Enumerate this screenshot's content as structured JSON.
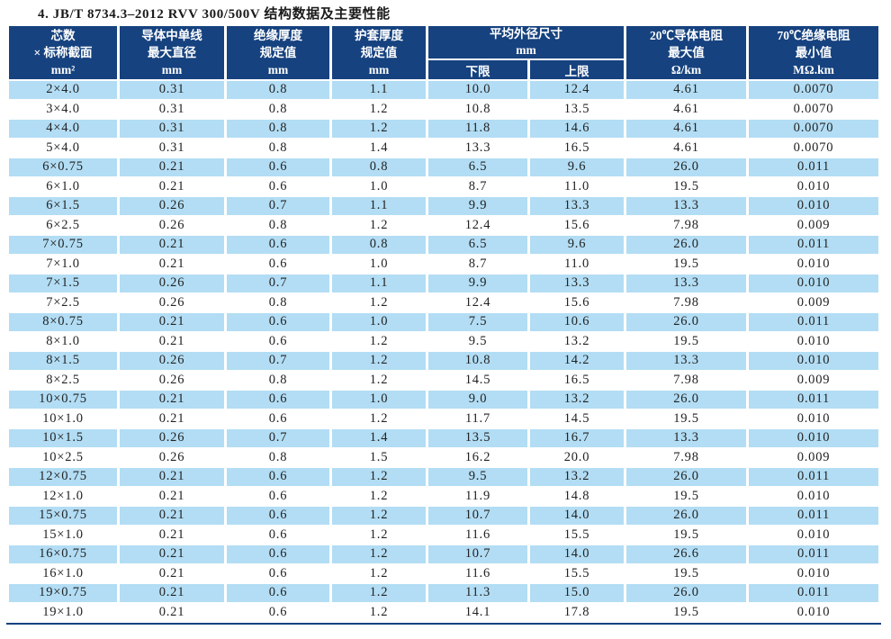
{
  "page_title": "4. JB/T 8734.3–2012 RVV 300/500V 结构数据及主要性能",
  "colors": {
    "header_bg": "#16427f",
    "header_text": "#ffffff",
    "row_stripe": "#b2ddf4",
    "cell_text": "#222222",
    "bottom_border": "#16427f"
  },
  "table": {
    "header": {
      "core": [
        "芯数",
        "× 标称截面",
        "mm²"
      ],
      "conductor": [
        "导体中单线",
        "最大直径",
        "mm"
      ],
      "insulation": [
        "绝缘厚度",
        "规定值",
        "mm"
      ],
      "sheath": [
        "护套厚度",
        "规定值",
        "mm"
      ],
      "avg_od": [
        "平均外径尺寸",
        "mm"
      ],
      "lower": "下限",
      "upper": "上限",
      "resistance20": [
        "20℃导体电阻",
        "最大值",
        "Ω/km"
      ],
      "resistance70": [
        "70℃绝缘电阻",
        "最小值",
        "MΩ.km"
      ]
    },
    "rows": [
      [
        "2×4.0",
        "0.31",
        "0.8",
        "1.1",
        "10.0",
        "12.4",
        "4.61",
        "0.0070"
      ],
      [
        "3×4.0",
        "0.31",
        "0.8",
        "1.2",
        "10.8",
        "13.5",
        "4.61",
        "0.0070"
      ],
      [
        "4×4.0",
        "0.31",
        "0.8",
        "1.2",
        "11.8",
        "14.6",
        "4.61",
        "0.0070"
      ],
      [
        "5×4.0",
        "0.31",
        "0.8",
        "1.4",
        "13.3",
        "16.5",
        "4.61",
        "0.0070"
      ],
      [
        "6×0.75",
        "0.21",
        "0.6",
        "0.8",
        "6.5",
        "9.6",
        "26.0",
        "0.011"
      ],
      [
        "6×1.0",
        "0.21",
        "0.6",
        "1.0",
        "8.7",
        "11.0",
        "19.5",
        "0.010"
      ],
      [
        "6×1.5",
        "0.26",
        "0.7",
        "1.1",
        "9.9",
        "13.3",
        "13.3",
        "0.010"
      ],
      [
        "6×2.5",
        "0.26",
        "0.8",
        "1.2",
        "12.4",
        "15.6",
        "7.98",
        "0.009"
      ],
      [
        "7×0.75",
        "0.21",
        "0.6",
        "0.8",
        "6.5",
        "9.6",
        "26.0",
        "0.011"
      ],
      [
        "7×1.0",
        "0.21",
        "0.6",
        "1.0",
        "8.7",
        "11.0",
        "19.5",
        "0.010"
      ],
      [
        "7×1.5",
        "0.26",
        "0.7",
        "1.1",
        "9.9",
        "13.3",
        "13.3",
        "0.010"
      ],
      [
        "7×2.5",
        "0.26",
        "0.8",
        "1.2",
        "12.4",
        "15.6",
        "7.98",
        "0.009"
      ],
      [
        "8×0.75",
        "0.21",
        "0.6",
        "1.0",
        "7.5",
        "10.6",
        "26.0",
        "0.011"
      ],
      [
        "8×1.0",
        "0.21",
        "0.6",
        "1.2",
        "9.5",
        "13.2",
        "19.5",
        "0.010"
      ],
      [
        "8×1.5",
        "0.26",
        "0.7",
        "1.2",
        "10.8",
        "14.2",
        "13.3",
        "0.010"
      ],
      [
        "8×2.5",
        "0.26",
        "0.8",
        "1.2",
        "14.5",
        "16.5",
        "7.98",
        "0.009"
      ],
      [
        "10×0.75",
        "0.21",
        "0.6",
        "1.0",
        "9.0",
        "13.2",
        "26.0",
        "0.011"
      ],
      [
        "10×1.0",
        "0.21",
        "0.6",
        "1.2",
        "11.7",
        "14.5",
        "19.5",
        "0.010"
      ],
      [
        "10×1.5",
        "0.26",
        "0.7",
        "1.4",
        "13.5",
        "16.7",
        "13.3",
        "0.010"
      ],
      [
        "10×2.5",
        "0.26",
        "0.8",
        "1.5",
        "16.2",
        "20.0",
        "7.98",
        "0.009"
      ],
      [
        "12×0.75",
        "0.21",
        "0.6",
        "1.2",
        "9.5",
        "13.2",
        "26.0",
        "0.011"
      ],
      [
        "12×1.0",
        "0.21",
        "0.6",
        "1.2",
        "11.9",
        "14.8",
        "19.5",
        "0.010"
      ],
      [
        "15×0.75",
        "0.21",
        "0.6",
        "1.2",
        "10.7",
        "14.0",
        "26.0",
        "0.011"
      ],
      [
        "15×1.0",
        "0.21",
        "0.6",
        "1.2",
        "11.6",
        "15.5",
        "19.5",
        "0.010"
      ],
      [
        "16×0.75",
        "0.21",
        "0.6",
        "1.2",
        "10.7",
        "14.0",
        "26.6",
        "0.011"
      ],
      [
        "16×1.0",
        "0.21",
        "0.6",
        "1.2",
        "11.6",
        "15.5",
        "19.5",
        "0.010"
      ],
      [
        "19×0.75",
        "0.21",
        "0.6",
        "1.2",
        "11.3",
        "15.0",
        "26.0",
        "0.011"
      ],
      [
        "19×1.0",
        "0.21",
        "0.6",
        "1.2",
        "14.1",
        "17.8",
        "19.5",
        "0.010"
      ]
    ]
  }
}
